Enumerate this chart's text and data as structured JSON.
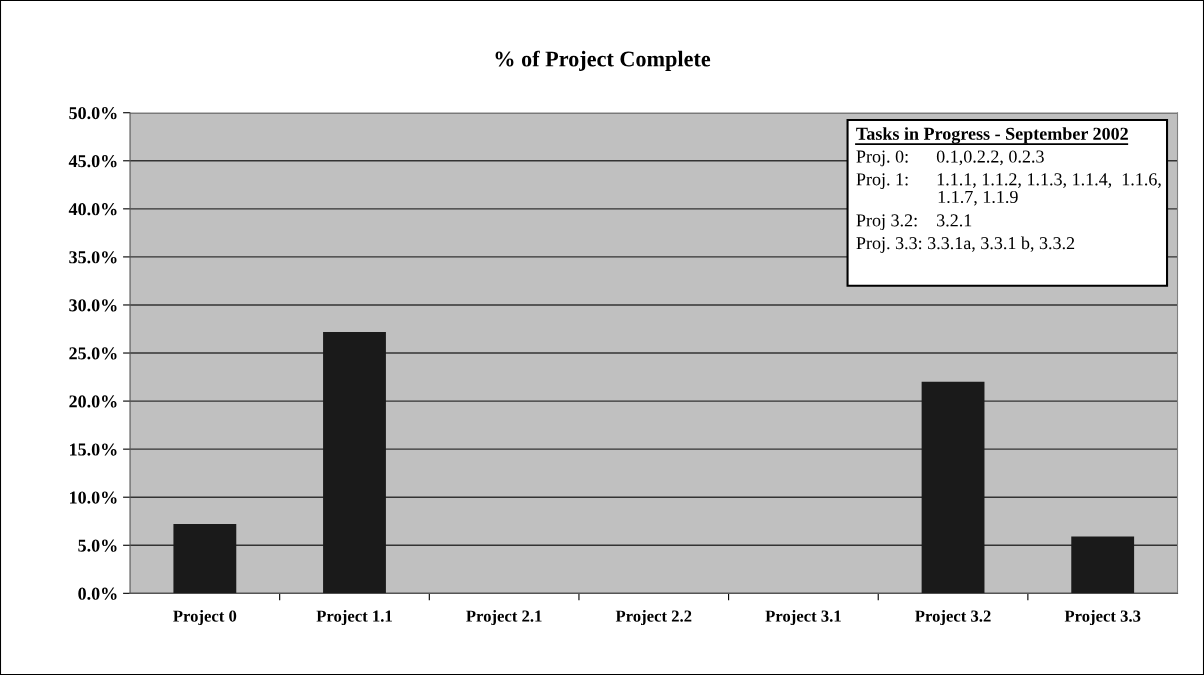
{
  "chart_data": {
    "type": "bar",
    "title": "% of Project Complete",
    "categories": [
      "Project 0",
      "Project 1.1",
      "Project 2.1",
      "Project 2.2",
      "Project 3.1",
      "Project 3.2",
      "Project 3.3"
    ],
    "values": [
      7.2,
      27.2,
      0,
      0,
      0,
      22.0,
      5.9
    ],
    "color": "#1a1a1a",
    "ylim": [
      0,
      50
    ],
    "yticks": [
      {
        "value": 0,
        "label": "0.0%"
      },
      {
        "value": 5,
        "label": "5.0%"
      },
      {
        "value": 10,
        "label": "10.0%"
      },
      {
        "value": 15,
        "label": "15.0%"
      },
      {
        "value": 20,
        "label": "20.0%"
      },
      {
        "value": 25,
        "label": "25.0%"
      },
      {
        "value": 30,
        "label": "30.0%"
      },
      {
        "value": 35,
        "label": "35.0%"
      },
      {
        "value": 40,
        "label": "40.0%"
      },
      {
        "value": 45,
        "label": "45.0%"
      },
      {
        "value": 50,
        "label": "50.0%"
      }
    ],
    "grid": "y",
    "annotations": [
      "Tasks in Progress - September 2002",
      "Proj. 0:      0.1,0.2.2, 0.2.3",
      "Proj. 1:      1.1.1, 1.1.2, 1.1.3, 1.1.4,  1.1.6,\n                  1.1.7, 1.1.9",
      "Proj 3.2:    3.2.1",
      "Proj. 3.3: 3.3.1a, 3.3.1 b, 3.3.2"
    ]
  }
}
